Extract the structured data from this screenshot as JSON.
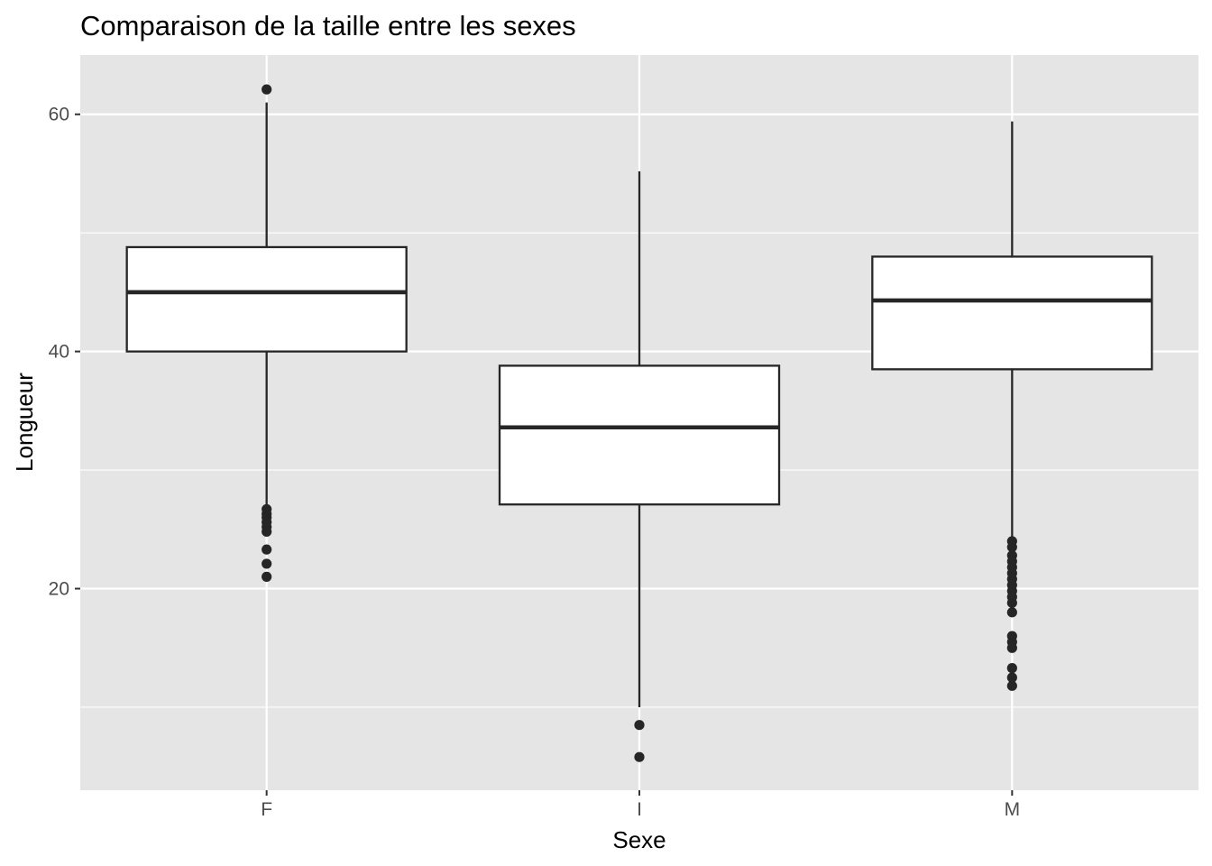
{
  "chart_data": {
    "type": "boxplot",
    "title": "Comparaison de la taille entre les sexes",
    "xlabel": "Sexe",
    "ylabel": "Longueur",
    "categories": [
      "F",
      "I",
      "M"
    ],
    "ylim": [
      3,
      65
    ],
    "yticks": [
      20,
      40,
      60
    ],
    "grid": true,
    "colors": {
      "panel_bg": "#e5e5e5",
      "grid_major": "#ffffff",
      "box_fill": "#ffffff",
      "box_line": "#262626",
      "point": "#262626",
      "tick": "#333333"
    },
    "boxes": [
      {
        "category": "F",
        "lower_whisker": 27.0,
        "q1": 40.0,
        "median": 45.0,
        "q3": 48.8,
        "upper_whisker": 61.0,
        "outliers": [
          62.1,
          26.7,
          26.3,
          26.0,
          25.6,
          25.2,
          24.8,
          23.3,
          22.1,
          21.0
        ]
      },
      {
        "category": "I",
        "lower_whisker": 10.0,
        "q1": 27.1,
        "median": 33.6,
        "q3": 38.8,
        "upper_whisker": 55.2,
        "outliers": [
          8.5,
          5.8
        ]
      },
      {
        "category": "M",
        "lower_whisker": 24.0,
        "q1": 38.5,
        "median": 44.3,
        "q3": 48.0,
        "upper_whisker": 59.4,
        "outliers": [
          24.0,
          23.5,
          22.8,
          22.3,
          21.8,
          21.3,
          20.8,
          20.3,
          19.8,
          19.3,
          18.8,
          18.0,
          16.0,
          15.5,
          15.0,
          13.3,
          12.5,
          11.8
        ]
      }
    ]
  }
}
